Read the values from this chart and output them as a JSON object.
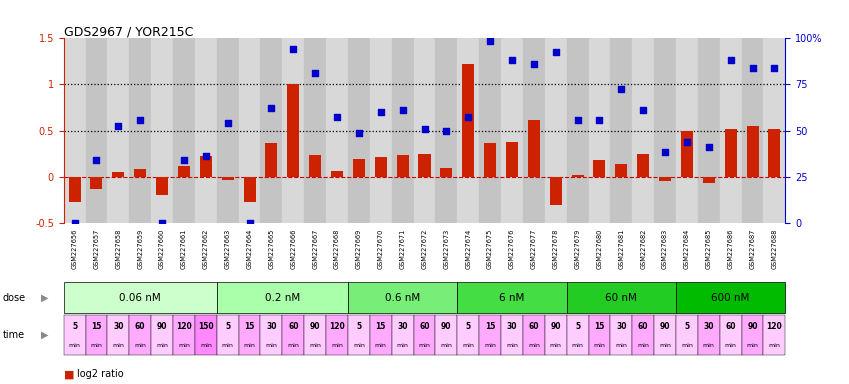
{
  "title": "GDS2967 / YOR215C",
  "gsm_labels": [
    "GSM227656",
    "GSM227657",
    "GSM227658",
    "GSM227659",
    "GSM227660",
    "GSM227661",
    "GSM227662",
    "GSM227663",
    "GSM227664",
    "GSM227665",
    "GSM227666",
    "GSM227667",
    "GSM227668",
    "GSM227669",
    "GSM227670",
    "GSM227671",
    "GSM227672",
    "GSM227673",
    "GSM227674",
    "GSM227675",
    "GSM227676",
    "GSM227677",
    "GSM227678",
    "GSM227679",
    "GSM227680",
    "GSM227681",
    "GSM227682",
    "GSM227683",
    "GSM227684",
    "GSM227685",
    "GSM227686",
    "GSM227687",
    "GSM227688"
  ],
  "log2_ratio": [
    -0.28,
    -0.13,
    0.05,
    0.08,
    -0.2,
    0.12,
    0.22,
    -0.04,
    -0.27,
    0.37,
    1.0,
    0.24,
    0.06,
    0.19,
    0.21,
    0.23,
    0.25,
    0.09,
    1.22,
    0.37,
    0.38,
    0.62,
    -0.31,
    0.02,
    0.18,
    0.14,
    0.25,
    -0.05,
    0.5,
    -0.07,
    0.52,
    0.55,
    0.52
  ],
  "percentile_left": [
    -0.5,
    0.18,
    0.55,
    0.62,
    -0.5,
    0.18,
    0.22,
    0.58,
    -0.5,
    0.75,
    1.38,
    1.12,
    0.65,
    0.47,
    0.7,
    0.72,
    0.52,
    0.5,
    0.65,
    1.47,
    1.27,
    1.22,
    1.35,
    0.62,
    0.62,
    0.95,
    0.72,
    0.27,
    0.38,
    0.32,
    1.27,
    1.18,
    1.18
  ],
  "doses": [
    "0.06 nM",
    "0.2 nM",
    "0.6 nM",
    "6 nM",
    "60 nM",
    "600 nM"
  ],
  "dose_counts": [
    7,
    6,
    5,
    5,
    5,
    5
  ],
  "dose_colors": [
    "#ccffcc",
    "#aaffaa",
    "#77ee77",
    "#44dd44",
    "#22cc22",
    "#00bb00"
  ],
  "time_labels_per_dose": [
    [
      "5",
      "15",
      "30",
      "60",
      "90",
      "120",
      "150"
    ],
    [
      "5",
      "15",
      "30",
      "60",
      "90",
      "120"
    ],
    [
      "5",
      "15",
      "30",
      "60",
      "90"
    ],
    [
      "5",
      "15",
      "30",
      "60",
      "90"
    ],
    [
      "5",
      "15",
      "30",
      "60",
      "90"
    ],
    [
      "5",
      "30",
      "60",
      "90",
      "120"
    ]
  ],
  "time_colors_per_dose": [
    [
      "#ffccff",
      "#ffaaff",
      "#ffccff",
      "#ffaaff",
      "#ffccff",
      "#ffaaff",
      "#ff88ff"
    ],
    [
      "#ffccff",
      "#ffaaff",
      "#ffccff",
      "#ffaaff",
      "#ffccff",
      "#ffaaff"
    ],
    [
      "#ffccff",
      "#ffaaff",
      "#ffccff",
      "#ffaaff",
      "#ffccff"
    ],
    [
      "#ffccff",
      "#ffaaff",
      "#ffccff",
      "#ffaaff",
      "#ffccff"
    ],
    [
      "#ffccff",
      "#ffaaff",
      "#ffccff",
      "#ffaaff",
      "#ffccff"
    ],
    [
      "#ffccff",
      "#ffaaff",
      "#ffccff",
      "#ffaaff",
      "#ffccff"
    ]
  ],
  "bar_color": "#cc2200",
  "scatter_color": "#0000cc",
  "ref_line_color": "#cc0000",
  "dotted_vals": [
    0.5,
    1.0
  ],
  "ylim": [
    -0.5,
    1.5
  ],
  "yticks": [
    -0.5,
    0.0,
    0.5,
    1.0,
    1.5
  ],
  "ytick_labels": [
    "-0.5",
    "0",
    "0.5",
    "1",
    "1.5"
  ],
  "right_yticks": [
    0,
    25,
    50,
    75,
    100
  ],
  "right_ytick_labels": [
    "0",
    "25",
    "50",
    "75",
    "100%"
  ],
  "xtick_col_even": "#d8d8d8",
  "xtick_col_odd": "#c4c4c4"
}
